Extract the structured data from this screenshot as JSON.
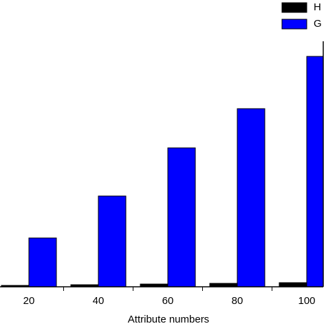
{
  "chart_data": {
    "type": "bar",
    "x_label": "Attribute numbers",
    "categories": [
      "20",
      "40",
      "60",
      "80",
      "100"
    ],
    "series": [
      {
        "name": "H",
        "color": "#000000",
        "values": [
          2,
          3,
          4,
          5,
          6
        ]
      },
      {
        "name": "G",
        "color": "#0000ff",
        "values": [
          71,
          132,
          202,
          259,
          335
        ]
      }
    ],
    "ylim": [
      0,
      350
    ]
  }
}
